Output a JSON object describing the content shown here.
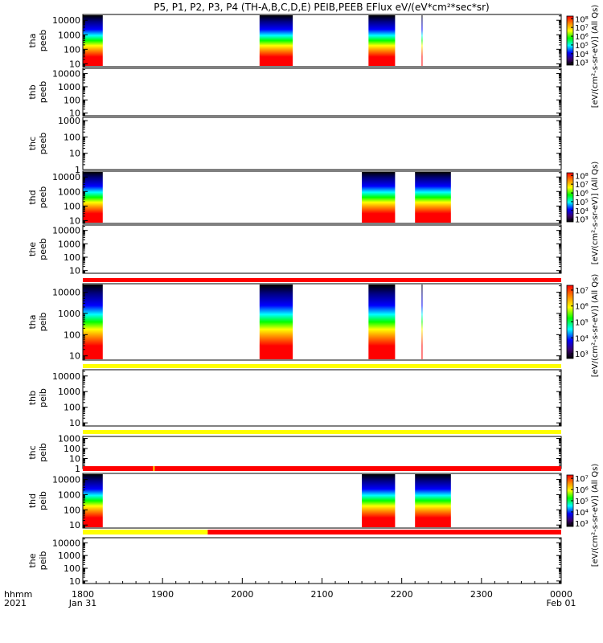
{
  "chart_data": {
    "type": "heatmap",
    "title": "P5, P1, P2, P3, P4 (TH-A,B,C,D,E) PEIB,PEEB EFlux eV/(eV*cm²*sec*sr)",
    "x_axis": {
      "unit_label": "hhmm",
      "year_label": "2021",
      "ticks": [
        "1800",
        "1900",
        "2000",
        "2100",
        "2200",
        "2300",
        "0000"
      ],
      "date_labels": [
        "Jan 31",
        "Feb 01"
      ],
      "range_hhmm": [
        "1800",
        "0000"
      ]
    },
    "panels": [
      {
        "ylabel": [
          "tha",
          "peeb"
        ],
        "yticks": [
          "10",
          "100",
          "1000",
          "10000"
        ],
        "log_scale": true,
        "data_blocks_hhmm": [
          [
            "1800",
            "1815"
          ],
          [
            "2013",
            "2038"
          ],
          [
            "2135",
            "2155"
          ],
          [
            "2175",
            "2200"
          ]
        ],
        "colorbar": {
          "ticks": [
            "10³",
            "10⁴",
            "10⁵",
            "10⁶",
            "10⁷",
            "10⁸"
          ],
          "label": "[eV/(cm²-s-sr-eV)] (All Qs)"
        }
      },
      {
        "ylabel": [
          "thb",
          "peeb"
        ],
        "yticks": [
          "10",
          "100",
          "1000",
          "10000"
        ],
        "log_scale": true,
        "data_blocks_hhmm": []
      },
      {
        "ylabel": [
          "thc",
          "peeb"
        ],
        "yticks": [
          "1",
          "10",
          "100",
          "1000"
        ],
        "log_scale": true,
        "data_blocks_hhmm": []
      },
      {
        "ylabel": [
          "thd",
          "peeb"
        ],
        "yticks": [
          "10",
          "100",
          "1000",
          "10000"
        ],
        "log_scale": true,
        "data_blocks_hhmm": [
          [
            "1800",
            "1815"
          ],
          [
            "2130",
            "2155"
          ],
          [
            "2170",
            "2197"
          ]
        ],
        "colorbar": {
          "ticks": [
            "10³",
            "10⁴",
            "10⁵",
            "10⁶",
            "10⁷",
            "10⁸"
          ],
          "label": "[eV/(cm²-s-sr-eV)] (All Qs)"
        }
      },
      {
        "ylabel": [
          "the",
          "peeb"
        ],
        "yticks": [
          "10",
          "100",
          "1000",
          "10000"
        ],
        "log_scale": true,
        "data_blocks_hhmm": []
      },
      {
        "ylabel": [
          "tha",
          "peib"
        ],
        "yticks": [
          "10",
          "100",
          "1000",
          "10000"
        ],
        "log_scale": true,
        "data_blocks_hhmm": [
          [
            "1800",
            "1815"
          ],
          [
            "2013",
            "2038"
          ],
          [
            "2135",
            "2155"
          ],
          [
            "2175",
            "2200"
          ]
        ],
        "colorbar": {
          "ticks": [
            "10³",
            "10⁴",
            "10⁵",
            "10⁶",
            "10⁷"
          ],
          "label": "[eV/(cm²-s-sr-eV)] (All Qs)"
        }
      },
      {
        "ylabel": [
          "thb",
          "peib"
        ],
        "yticks": [
          "10",
          "100",
          "1000",
          "10000"
        ],
        "log_scale": true,
        "data_blocks_hhmm": []
      },
      {
        "ylabel": [
          "thc",
          "peib"
        ],
        "yticks": [
          "1",
          "10",
          "100",
          "1000"
        ],
        "log_scale": true,
        "data_blocks_hhmm": []
      },
      {
        "ylabel": [
          "thd",
          "peib"
        ],
        "yticks": [
          "10",
          "100",
          "1000",
          "10000"
        ],
        "log_scale": true,
        "data_blocks_hhmm": [
          [
            "1800",
            "1815"
          ],
          [
            "2130",
            "2155"
          ],
          [
            "2170",
            "2197"
          ]
        ],
        "colorbar": {
          "ticks": [
            "10³",
            "10⁴",
            "10⁵",
            "10⁶",
            "10⁷"
          ],
          "label": "[eV/(cm²-s-sr-eV)] (All Qs)"
        }
      },
      {
        "ylabel": [
          "the",
          "peib"
        ],
        "yticks": [
          "10",
          "100",
          "1000",
          "10000"
        ],
        "log_scale": true,
        "data_blocks_hhmm": []
      }
    ],
    "colors": {
      "red_bar": "#ff0000",
      "yellow_bar": "#ffff00",
      "colormap": [
        "#ff0000",
        "#ff8800",
        "#ffff00",
        "#00ff00",
        "#00ffff",
        "#0000ff",
        "#000080",
        "#000000"
      ]
    },
    "grid": false
  }
}
